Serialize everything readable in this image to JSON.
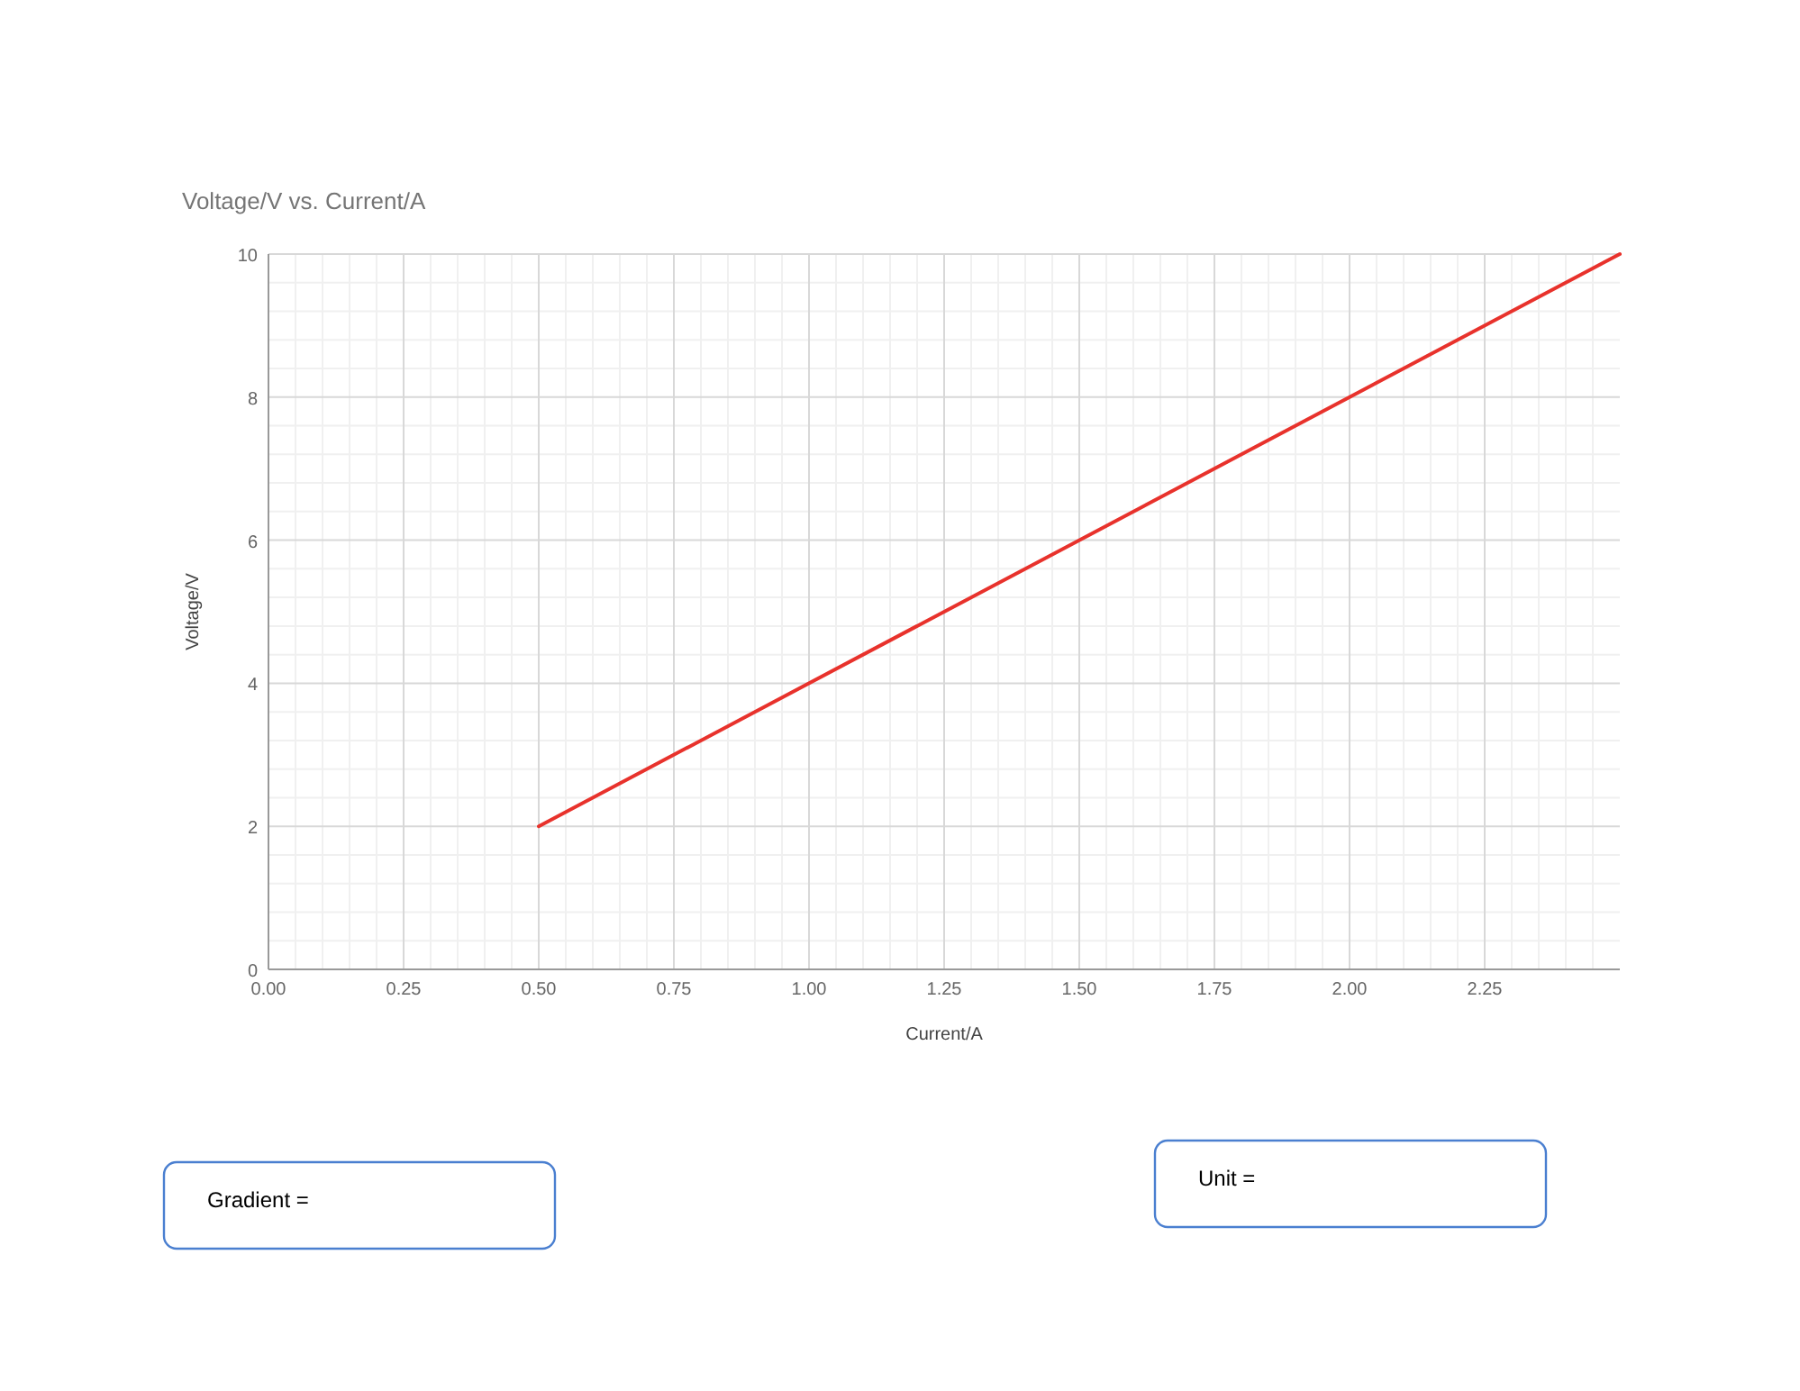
{
  "chart_data": {
    "type": "line",
    "title": "Voltage/V vs. Current/A",
    "xlabel": "Current/A",
    "ylabel": "Voltage/V",
    "x": [
      0.5,
      2.5
    ],
    "series": [
      {
        "color": "#e8322c",
        "values": [
          2,
          10
        ]
      }
    ],
    "xlim": [
      0,
      2.5
    ],
    "xticks": [
      {
        "value": 0,
        "label": "0.00"
      },
      {
        "value": 0.25,
        "label": "0.25"
      },
      {
        "value": 0.5,
        "label": "0.50"
      },
      {
        "value": 0.75,
        "label": "0.75"
      },
      {
        "value": 1,
        "label": "1.00"
      },
      {
        "value": 1.25,
        "label": "1.25"
      },
      {
        "value": 1.5,
        "label": "1.50"
      },
      {
        "value": 1.75,
        "label": "1.75"
      },
      {
        "value": 2,
        "label": "2.00"
      },
      {
        "value": 2.25,
        "label": "2.25"
      }
    ],
    "ylim": [
      0,
      10
    ],
    "yticks": [
      0,
      2,
      4,
      6,
      8,
      10
    ],
    "grid": true,
    "marker": "none",
    "line_style": "solid",
    "annotations": [
      "Gradient =",
      "Unit ="
    ]
  }
}
